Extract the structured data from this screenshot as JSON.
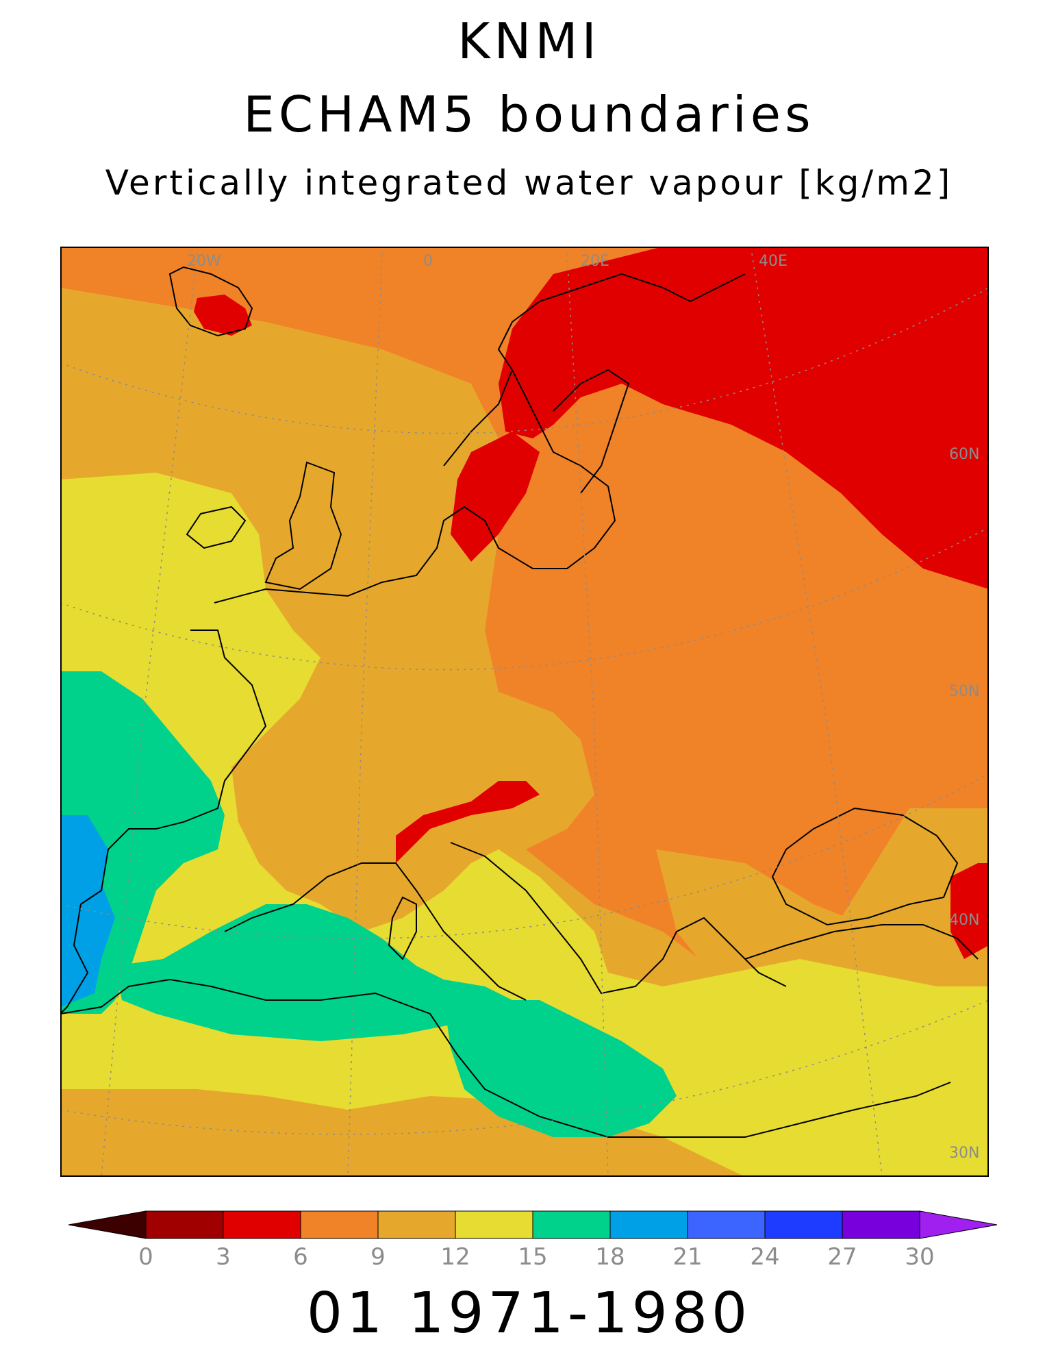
{
  "titles": {
    "line1": "KNMI",
    "line2": "ECHAM5 boundaries",
    "line3": "Vertically integrated water vapour [kg/m2]"
  },
  "footer": "01 1971-1980",
  "map": {
    "lon_labels": [
      "20W",
      "0",
      "20E",
      "40E"
    ],
    "lat_labels": [
      "60N",
      "50N",
      "40N",
      "30N"
    ],
    "label_color": "#8c8c8c",
    "coast_color": "#000000"
  },
  "colorbar": {
    "ticks": [
      "0",
      "3",
      "6",
      "9",
      "12",
      "15",
      "18",
      "21",
      "24",
      "27",
      "30"
    ],
    "under_color": "#3d0000",
    "over_color": "#a020f0",
    "colors": [
      "#a00000",
      "#e00000",
      "#f08228",
      "#e6a82c",
      "#e6dc32",
      "#00d28c",
      "#00a0e6",
      "#3c64ff",
      "#1e3cff",
      "#7800dc"
    ]
  }
}
